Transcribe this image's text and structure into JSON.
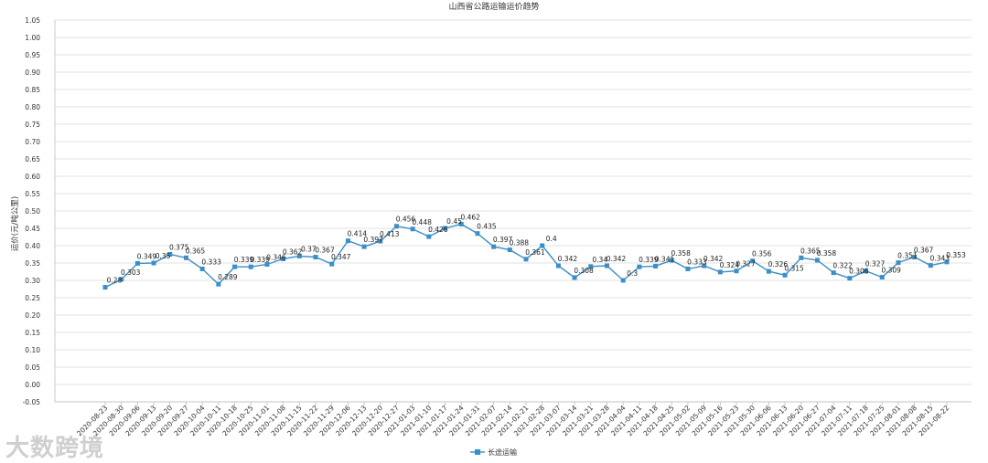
{
  "chart_data": {
    "type": "line",
    "title": "山西省公路运输运价趋势",
    "ylabel": "运价(元/吨公里)",
    "xlabel": "",
    "ylim": [
      -0.05,
      1.05
    ],
    "yticks": [
      "-0.05",
      "0.00",
      "0.05",
      "0.10",
      "0.15",
      "0.20",
      "0.25",
      "0.30",
      "0.35",
      "0.40",
      "0.45",
      "0.50",
      "0.55",
      "0.60",
      "0.65",
      "0.70",
      "0.75",
      "0.80",
      "0.85",
      "0.90",
      "0.95",
      "1.00",
      "1.05"
    ],
    "grid": true,
    "legend_position": "bottom",
    "color": "#3a8fc9",
    "categories": [
      "2020-08-23",
      "2020-08-30",
      "2020-09-06",
      "2020-09-13",
      "2020-09-20",
      "2020-09-27",
      "2020-10-04",
      "2020-10-11",
      "2020-10-18",
      "2020-10-25",
      "2020-11-01",
      "2020-11-08",
      "2020-11-15",
      "2020-11-22",
      "2020-11-29",
      "2020-12-06",
      "2020-12-13",
      "2020-12-20",
      "2020-12-27",
      "2021-01-03",
      "2021-01-10",
      "2021-01-17",
      "2021-01-24",
      "2021-01-31",
      "2021-02-07",
      "2021-02-14",
      "2021-02-21",
      "2021-02-28",
      "2021-03-07",
      "2021-03-14",
      "2021-03-21",
      "2021-03-28",
      "2021-04-04",
      "2021-04-11",
      "2021-04-18",
      "2021-04-25",
      "2021-05-02",
      "2021-05-09",
      "2021-05-16",
      "2021-05-23",
      "2021-05-30",
      "2021-06-06",
      "2021-06-13",
      "2021-06-20",
      "2021-06-27",
      "2021-07-04",
      "2021-07-11",
      "2021-07-18",
      "2021-07-25",
      "2021-08-01",
      "2021-08-08",
      "2021-08-15",
      "2021-08-22"
    ],
    "series": [
      {
        "name": "长途运输",
        "values": [
          0.28,
          0.303,
          0.349,
          0.35,
          0.375,
          0.365,
          0.333,
          0.289,
          0.339,
          0.339,
          0.346,
          0.362,
          0.37,
          0.367,
          0.347,
          0.414,
          0.397,
          0.413,
          0.456,
          0.448,
          0.426,
          0.45,
          0.462,
          0.435,
          0.397,
          0.388,
          0.361,
          0.4,
          0.342,
          0.308,
          0.34,
          0.342,
          0.3,
          0.339,
          0.341,
          0.358,
          0.333,
          0.342,
          0.324,
          0.327,
          0.356,
          0.326,
          0.315,
          0.365,
          0.358,
          0.322,
          0.306,
          0.327,
          0.309,
          0.351,
          0.367,
          0.343,
          0.353
        ],
        "labels": [
          "0.28",
          "0.303",
          "0.349",
          "0.35",
          "0.375",
          "0.365",
          "0.333",
          "0.289",
          "0.339",
          "0.339",
          "0.346",
          "0.362",
          "0.37",
          "0.367",
          "0.347",
          "0.414",
          "0.397",
          "0.413",
          "0.456",
          "0.448",
          "0.426",
          "0.45",
          "0.462",
          "0.435",
          "0.397",
          "0.388",
          "0.361",
          "0.4",
          "0.342",
          "0.308",
          "0.34",
          "0.342",
          "0.3",
          "0.339",
          "0.341",
          "0.358",
          "0.333",
          "0.342",
          "0.324",
          "0.327",
          "0.356",
          "0.326",
          "0.315",
          "0.365",
          "0.358",
          "0.322",
          "0.306",
          "0.327",
          "0.309",
          "0.351",
          "0.367",
          "0.343",
          "0.353"
        ]
      }
    ]
  },
  "watermark": "大数跨境"
}
